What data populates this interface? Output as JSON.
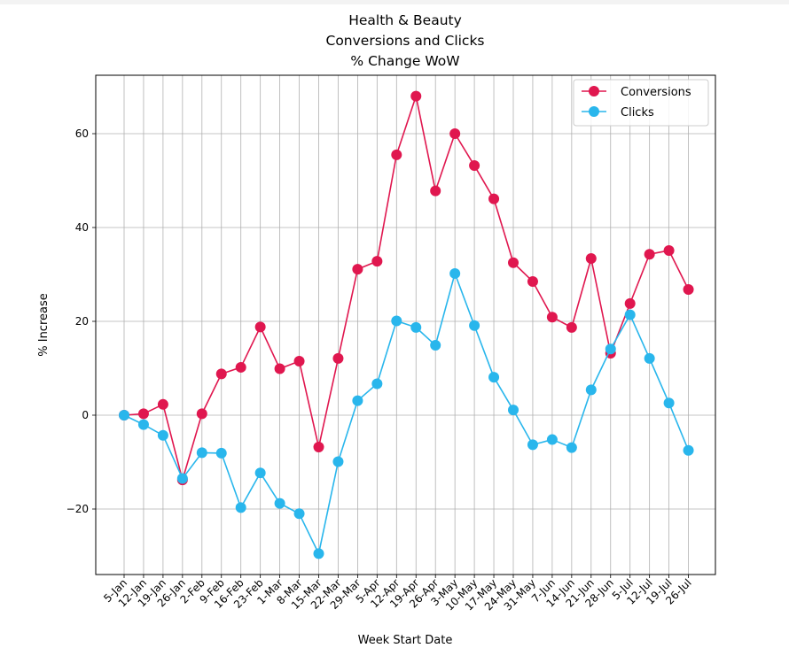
{
  "chart_data": {
    "type": "line",
    "title": [
      "Health & Beauty",
      "Conversions and Clicks",
      "% Change WoW"
    ],
    "xlabel": "Week Start Date",
    "ylabel": "% Increase",
    "ylim": [
      -34,
      73
    ],
    "yticks": [
      -20,
      0,
      20,
      40,
      60
    ],
    "ytick_labels": [
      "−20",
      "0",
      "20",
      "40",
      "60"
    ],
    "grid": true,
    "legend_position": "top-right",
    "categories": [
      "5-Jan",
      "12-Jan",
      "19-Jan",
      "26-Jan",
      "2-Feb",
      "9-Feb",
      "16-Feb",
      "23-Feb",
      "1-Mar",
      "8-Mar",
      "15-Mar",
      "22-Mar",
      "29-Mar",
      "5-Apr",
      "12-Apr",
      "19-Apr",
      "26-Apr",
      "3-May",
      "10-May",
      "17-May",
      "24-May",
      "31-May",
      "7-Jun",
      "14-Jun",
      "21-Jun",
      "28-Jun",
      "5-Jul",
      "12-Jul",
      "19-Jul",
      "26-Jul"
    ],
    "series": [
      {
        "name": "Conversions",
        "color": "#e0174f",
        "values": [
          0,
          0.3,
          2.3,
          -13.8,
          0.3,
          8.8,
          10.2,
          18.8,
          9.9,
          11.5,
          -6.8,
          12.1,
          31.1,
          32.8,
          55.5,
          68,
          47.8,
          60,
          53.2,
          46.1,
          32.5,
          28.5,
          20.9,
          18.7,
          33.4,
          13.2,
          23.8,
          34.3,
          35.1,
          26.8
        ]
      },
      {
        "name": "Clicks",
        "color": "#29b6ec",
        "values": [
          0,
          -2,
          -4.3,
          -13.5,
          -8,
          -8.1,
          -19.7,
          -12.3,
          -18.8,
          -21,
          -29.5,
          -9.9,
          3.1,
          6.7,
          20.1,
          18.7,
          14.9,
          30.2,
          19.1,
          8.1,
          1.1,
          -6.3,
          -5.2,
          -6.9,
          5.4,
          14.1,
          21.4,
          12.1,
          2.6,
          -7.5
        ]
      }
    ]
  }
}
